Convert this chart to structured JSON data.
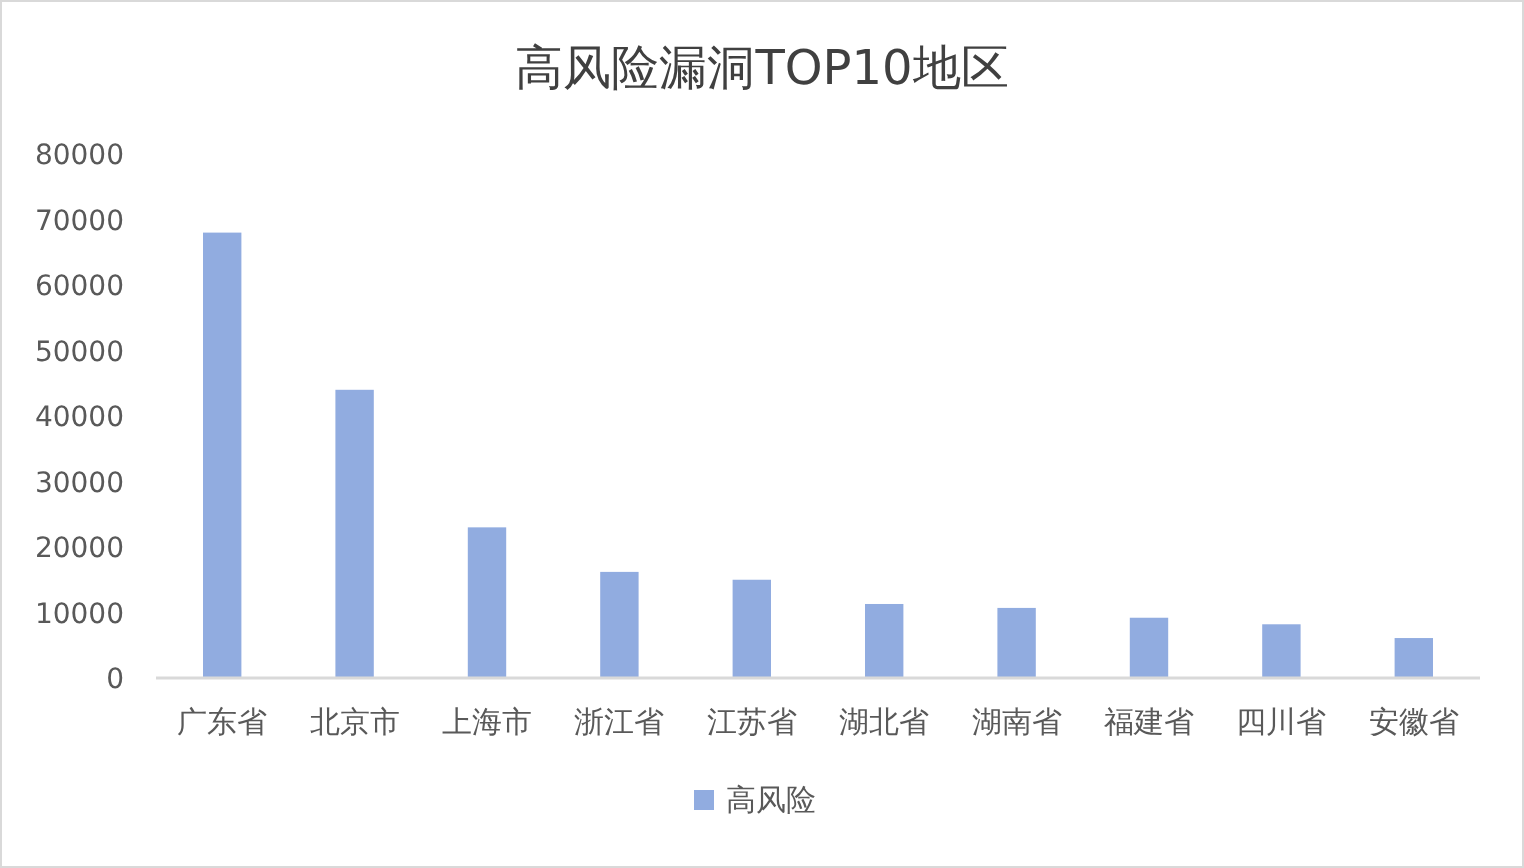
{
  "chart_data": {
    "type": "bar",
    "title": "高风险漏洞TOP10地区",
    "categories": [
      "广东省",
      "北京市",
      "上海市",
      "浙江省",
      "江苏省",
      "湖北省",
      "湖南省",
      "福建省",
      "四川省",
      "安徽省"
    ],
    "series": [
      {
        "name": "高风险",
        "color": "#91ace0",
        "values": [
          68000,
          44000,
          23000,
          16200,
          15000,
          11300,
          10700,
          9200,
          8200,
          6100
        ]
      }
    ],
    "ylim": [
      0,
      80000
    ],
    "yticks": [
      0,
      10000,
      20000,
      30000,
      40000,
      50000,
      60000,
      70000,
      80000
    ],
    "grid": false,
    "legend": "bottom"
  }
}
